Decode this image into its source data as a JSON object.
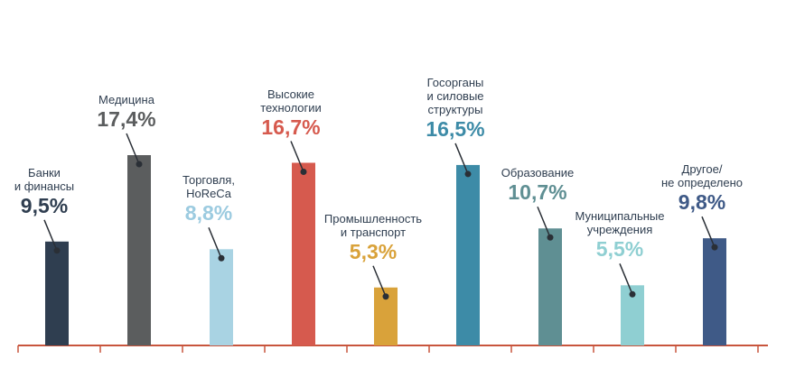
{
  "chart_data": {
    "type": "bar",
    "categories": [
      "Банки\nи финансы",
      "Медицина",
      "Торговля,\nHoReCa",
      "Высокие\nтехнологии",
      "Промышленность\nи транспорт",
      "Госорганы\nи силовые\nструктуры",
      "Образование",
      "Муниципальные\nучреждения",
      "Другое/\nне определено"
    ],
    "values": [
      9.5,
      17.4,
      8.8,
      16.7,
      5.3,
      16.5,
      10.7,
      5.5,
      9.8
    ],
    "value_labels": [
      "9,5%",
      "17,4%",
      "8,8%",
      "16,7%",
      "5,3%",
      "16,5%",
      "10,7%",
      "5,5%",
      "9,8%"
    ],
    "colors": [
      "#2f3e50",
      "#5b5d5e",
      "#a9d3e3",
      "#d65a4e",
      "#d9a23a",
      "#3d8ba7",
      "#5f8f93",
      "#8fcfd2",
      "#3f5a87"
    ],
    "label_colors": [
      "#2f3e50",
      "#5b5d5e",
      "#9ccbe0",
      "#d65a4e",
      "#d9a23a",
      "#3d8ba7",
      "#5f8f93",
      "#8fcfd2",
      "#3f5a87"
    ]
  }
}
